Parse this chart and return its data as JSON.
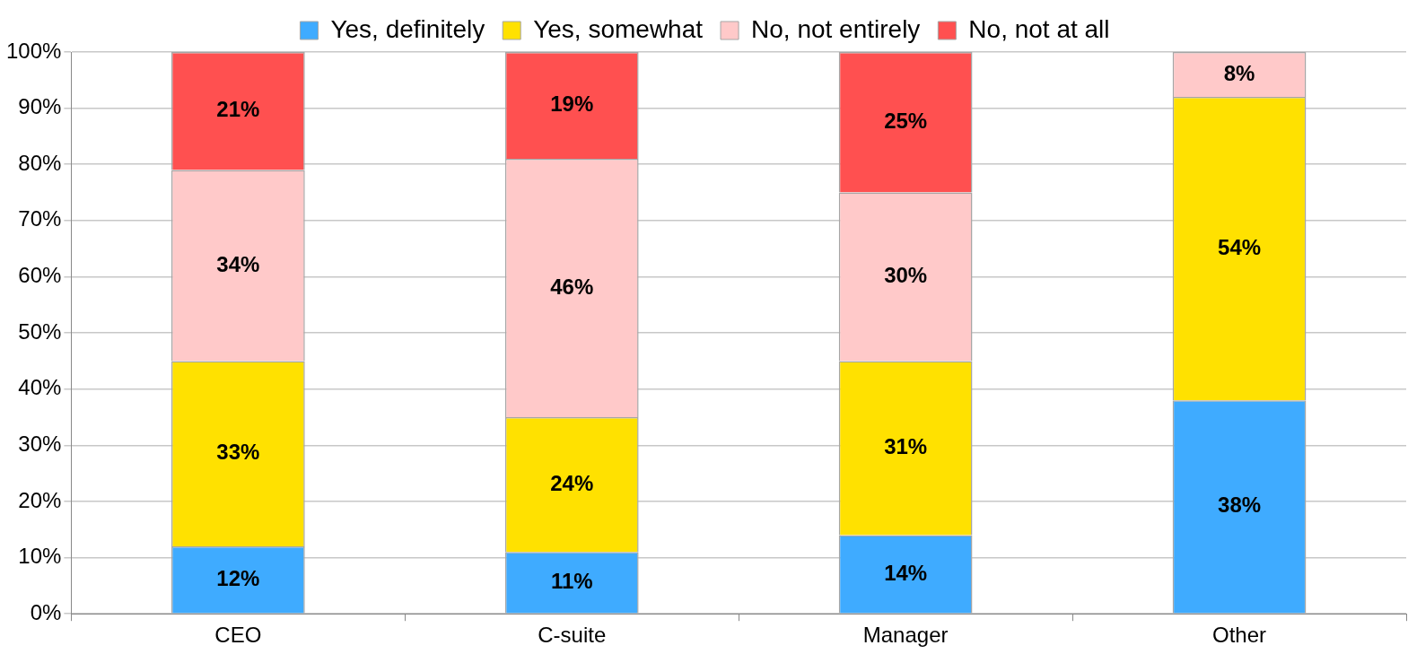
{
  "chart_data": {
    "type": "bar",
    "stacked": true,
    "categories": [
      "CEO",
      "C-suite",
      "Manager",
      "Other"
    ],
    "series": [
      {
        "name": "Yes, definitely",
        "color": "#3fabff",
        "values": [
          12,
          11,
          14,
          38
        ],
        "value_labels": [
          "12%",
          "11%",
          "14%",
          "38%"
        ]
      },
      {
        "name": "Yes, somewhat",
        "color": "#ffe100",
        "values": [
          33,
          24,
          31,
          54
        ],
        "value_labels": [
          "33%",
          "24%",
          "31%",
          "54%"
        ]
      },
      {
        "name": "No, not entirely",
        "color": "#ffc9c9",
        "values": [
          34,
          46,
          30,
          8
        ],
        "value_labels": [
          "34%",
          "46%",
          "30%",
          "8%"
        ]
      },
      {
        "name": "No, not at all",
        "color": "#ff5050",
        "values": [
          21,
          19,
          25,
          null
        ],
        "value_labels": [
          "21%",
          "19%",
          "25%",
          null
        ]
      }
    ],
    "ylim": [
      0,
      100
    ],
    "yticks": [
      {
        "value": 0,
        "label": "0%"
      },
      {
        "value": 10,
        "label": "10%"
      },
      {
        "value": 20,
        "label": "20%"
      },
      {
        "value": 30,
        "label": "30%"
      },
      {
        "value": 40,
        "label": "40%"
      },
      {
        "value": 50,
        "label": "50%"
      },
      {
        "value": 60,
        "label": "60%"
      },
      {
        "value": 70,
        "label": "70%"
      },
      {
        "value": 80,
        "label": "80%"
      },
      {
        "value": 90,
        "label": "90%"
      },
      {
        "value": 100,
        "label": "100%"
      }
    ],
    "grid": "y",
    "legend": "top"
  }
}
